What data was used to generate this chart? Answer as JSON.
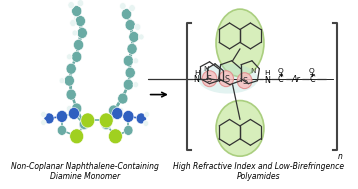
{
  "background_color": "#ffffff",
  "left_caption_line1": "Non-Coplanar Naphthalene-Containing",
  "left_caption_line2": "Diamine Monomer",
  "right_caption_line1": "High Refractive Index and Low-Birefringence",
  "right_caption_line2": "Polyamides",
  "caption_fontsize": 5.5,
  "teal_color": "#6aaba4",
  "teal_light": "#8cc4be",
  "green_color": "#a0d020",
  "blue_color": "#3060c0",
  "white_atom": "#e8f4f2",
  "bracket_color": "#444444",
  "naph_highlight": "#d0ebb0",
  "naph_highlight_edge": "#a0c870",
  "thiazole_pink": "#f8c0c0",
  "thiazole_pink_edge": "#e08888",
  "thiazole_teal_bg": "#b0ddd8",
  "bond_color": "#333333"
}
